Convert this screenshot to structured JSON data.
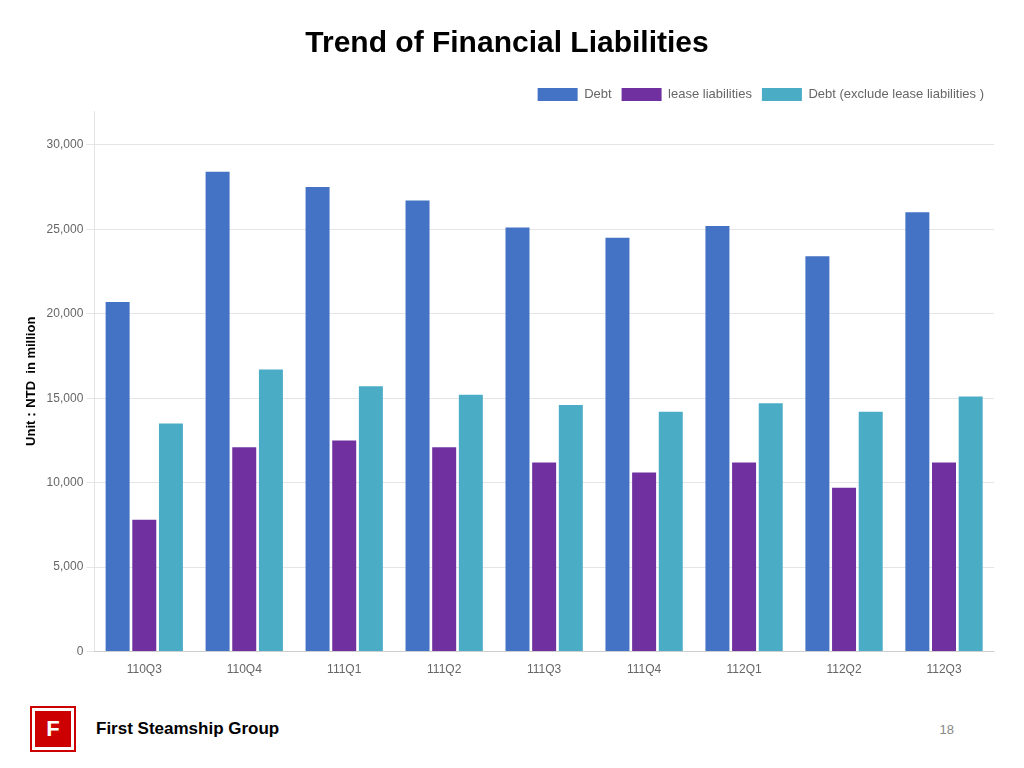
{
  "chart_data": {
    "type": "bar",
    "title": "Trend of Financial Liabilities",
    "y_label": "Unit：NTD  in million",
    "categories": [
      "110Q3",
      "110Q4",
      "111Q1",
      "111Q2",
      "111Q3",
      "111Q4",
      "112Q1",
      "112Q2",
      "112Q3"
    ],
    "series": [
      {
        "name": "Debt",
        "color": "#4472C4",
        "values": [
          20700,
          28400,
          27500,
          26700,
          25100,
          24500,
          25200,
          23400,
          26000
        ]
      },
      {
        "name": "lease liabilities",
        "color": "#7030A0",
        "values": [
          7800,
          12100,
          12500,
          12100,
          11200,
          10600,
          11200,
          9700,
          11200
        ]
      },
      {
        "name": "Debt (exclude lease liabilities )",
        "color": "#4BACC6",
        "values": [
          13500,
          16700,
          15700,
          15200,
          14600,
          14200,
          14700,
          14200,
          15100
        ]
      }
    ],
    "ylim": [
      0,
      32000
    ],
    "yticks": [
      0,
      {
        "value": 5000,
        "label": "5,000"
      },
      {
        "value": 10000,
        "label": "10,000"
      },
      {
        "value": 15000,
        "label": "15,000"
      },
      {
        "value": 20000,
        "label": "20,000"
      },
      {
        "value": 25000,
        "label": "25,000"
      },
      {
        "value": 30000,
        "label": "30,000"
      }
    ],
    "grid": true,
    "legend": "upper right",
    "annotations": [
      "F",
      "First Steamship Group",
      "18"
    ]
  }
}
